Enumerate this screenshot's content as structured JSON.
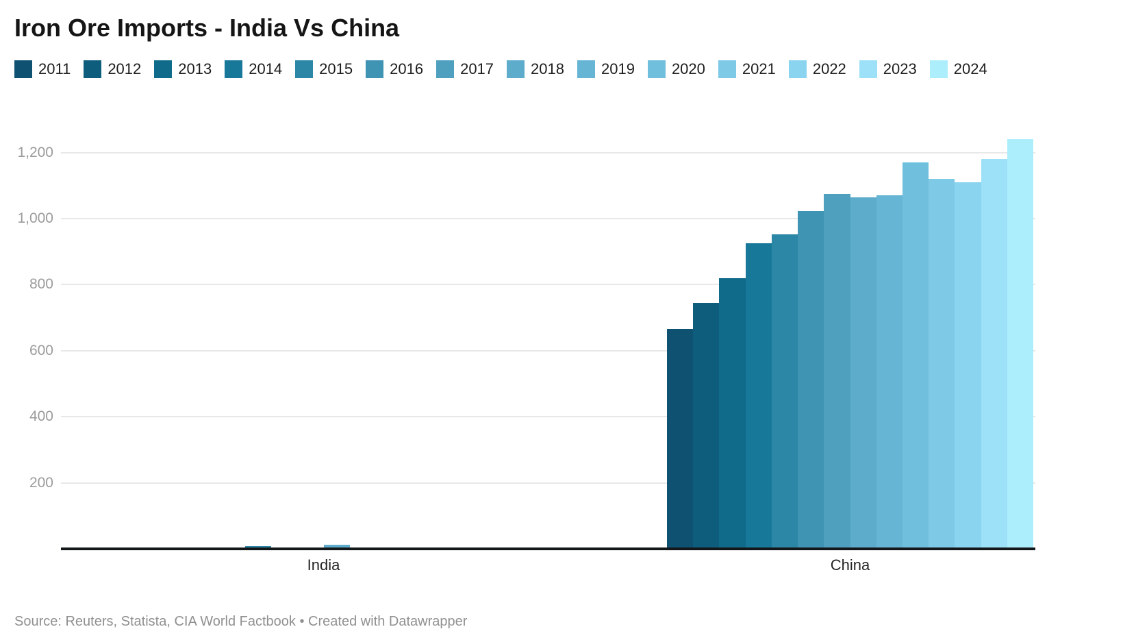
{
  "header": {
    "title": "Iron Ore Imports - India Vs China"
  },
  "legend": {
    "years": [
      "2011",
      "2012",
      "2013",
      "2014",
      "2015",
      "2016",
      "2017",
      "2018",
      "2019",
      "2020",
      "2021",
      "2022",
      "2023",
      "2024"
    ],
    "colors": [
      "#0E5170",
      "#0E5D7D",
      "#106A8A",
      "#187899",
      "#2C86A5",
      "#3F93B3",
      "#4FA0BF",
      "#5DACCB",
      "#66B5D4",
      "#70BFDD",
      "#7DC9E6",
      "#8BD4EF",
      "#9CE1F7",
      "#ADEEFC"
    ]
  },
  "chart_data": {
    "type": "bar",
    "title": "Iron Ore Imports - India Vs China",
    "categories": [
      "India",
      "China"
    ],
    "series": [
      {
        "name": "2011",
        "color": "#0E5170",
        "values": [
          0,
          667
        ]
      },
      {
        "name": "2012",
        "color": "#0E5D7D",
        "values": [
          0,
          745
        ]
      },
      {
        "name": "2013",
        "color": "#106A8A",
        "values": [
          0,
          820
        ]
      },
      {
        "name": "2014",
        "color": "#187899",
        "values": [
          4,
          925
        ]
      },
      {
        "name": "2015",
        "color": "#2C86A5",
        "values": [
          8,
          953
        ]
      },
      {
        "name": "2016",
        "color": "#3F93B3",
        "values": [
          2,
          1022
        ]
      },
      {
        "name": "2017",
        "color": "#4FA0BF",
        "values": [
          2,
          1075
        ]
      },
      {
        "name": "2018",
        "color": "#5DACCB",
        "values": [
          13,
          1064
        ]
      },
      {
        "name": "2019",
        "color": "#66B5D4",
        "values": [
          0,
          1070
        ]
      },
      {
        "name": "2020",
        "color": "#70BFDD",
        "values": [
          0,
          1170
        ]
      },
      {
        "name": "2021",
        "color": "#7DC9E6",
        "values": [
          2,
          1120
        ]
      },
      {
        "name": "2022",
        "color": "#8BD4EF",
        "values": [
          0,
          1110
        ]
      },
      {
        "name": "2023",
        "color": "#9CE1F7",
        "values": [
          4,
          1180
        ]
      },
      {
        "name": "2024",
        "color": "#ADEEFC",
        "values": [
          4,
          1240
        ]
      }
    ],
    "ylim": [
      0,
      1350
    ],
    "yticks": [
      200,
      400,
      600,
      800,
      1000,
      1200
    ],
    "grid": "horizontal",
    "legend_position": "top",
    "axis_line_color": "#14171a"
  },
  "footer": {
    "source": "Source: Reuters, Statista, CIA World Factbook",
    "separator": " • ",
    "credit": "Created with Datawrapper"
  }
}
